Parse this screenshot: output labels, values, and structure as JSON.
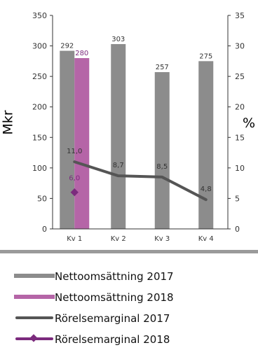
{
  "chart_data": {
    "type": "bar",
    "categories": [
      "Kv 1",
      "Kv 2",
      "Kv 3",
      "Kv 4"
    ],
    "ylabel_left": "Mkr",
    "ylabel_right": "%",
    "ylim_left": [
      0,
      350
    ],
    "ylim_right": [
      0,
      35
    ],
    "yticks_left": [
      "0",
      "50",
      "100",
      "150",
      "200",
      "250",
      "300",
      "350"
    ],
    "yticks_right": [
      "0",
      "5",
      "10",
      "15",
      "20",
      "25",
      "30",
      "35"
    ],
    "grid": false,
    "legend_position": "bottom",
    "series": [
      {
        "name": "Nettoomsättning 2017",
        "kind": "bar",
        "axis": "left",
        "color": "#8c8c8c",
        "values": [
          292,
          303,
          257,
          275
        ],
        "labels": [
          "292",
          "303",
          "257",
          "275"
        ]
      },
      {
        "name": "Nettoomsättning 2018",
        "kind": "bar",
        "axis": "left",
        "color": "#b565a7",
        "values": [
          280,
          null,
          null,
          null
        ],
        "labels": [
          "280",
          "",
          "",
          ""
        ]
      },
      {
        "name": "Rörelsemarginal 2017",
        "kind": "line",
        "axis": "right",
        "color": "#555555",
        "values": [
          11.0,
          8.7,
          8.5,
          4.8
        ],
        "labels": [
          "11,0",
          "8,7",
          "8,5",
          "4,8"
        ]
      },
      {
        "name": "Rörelsemarginal 2018",
        "kind": "line",
        "axis": "right",
        "color": "#7b2b7d",
        "values": [
          6.0,
          null,
          null,
          null
        ],
        "labels": [
          "6,0",
          "",
          "",
          ""
        ]
      }
    ]
  }
}
